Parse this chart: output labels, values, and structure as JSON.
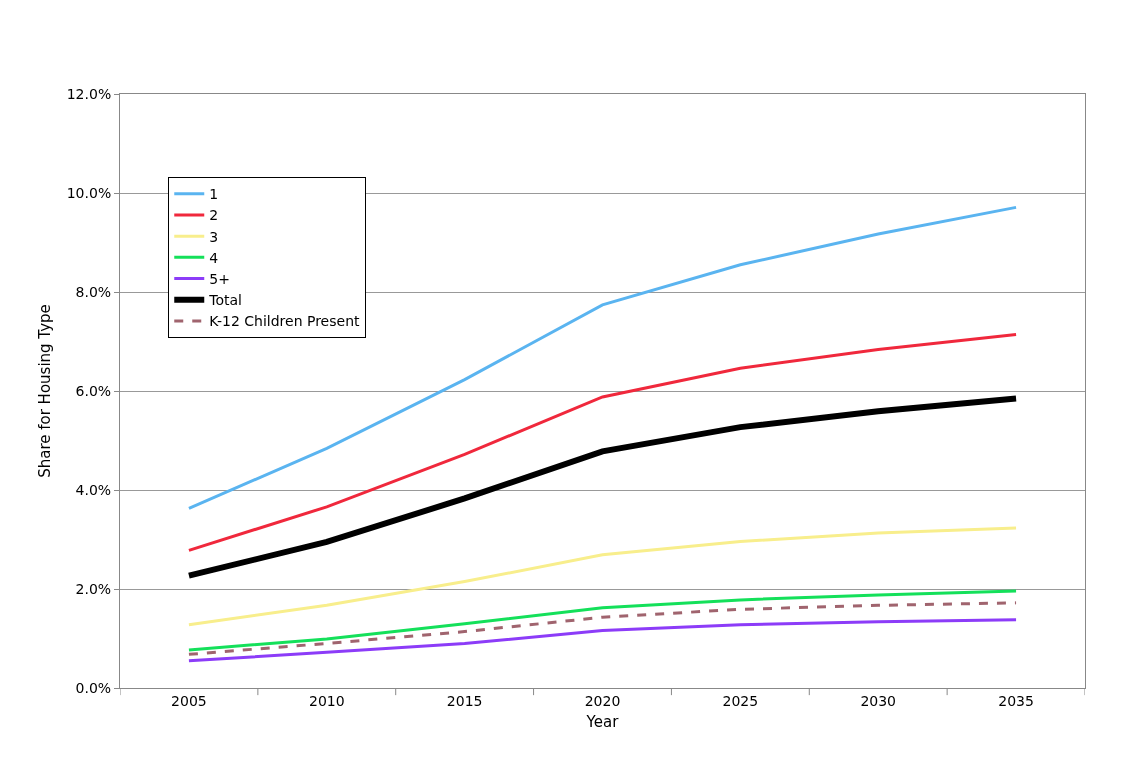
{
  "chart_data": {
    "type": "line",
    "xlabel": "Year",
    "ylabel": "Share for Housing Type",
    "categories": [
      "2005",
      "2010",
      "2015",
      "2020",
      "2025",
      "2030",
      "2035"
    ],
    "series": [
      {
        "name": "1",
        "color": "#5ab4f0",
        "values": [
          3.63,
          4.84,
          6.23,
          7.74,
          8.55,
          9.17,
          9.71
        ]
      },
      {
        "name": "2",
        "color": "#f0283c",
        "values": [
          2.78,
          3.66,
          4.72,
          5.88,
          6.46,
          6.84,
          7.14
        ]
      },
      {
        "name": "3",
        "color": "#f8ee8c",
        "values": [
          1.28,
          1.67,
          2.15,
          2.69,
          2.96,
          3.13,
          3.23
        ]
      },
      {
        "name": "4",
        "color": "#14e05a",
        "values": [
          0.77,
          0.99,
          1.3,
          1.62,
          1.78,
          1.88,
          1.96
        ]
      },
      {
        "name": "5+",
        "color": "#8c3cf8",
        "values": [
          0.55,
          0.72,
          0.9,
          1.16,
          1.28,
          1.34,
          1.38
        ]
      },
      {
        "name": "Total",
        "color": "#000000",
        "values": [
          2.27,
          2.95,
          3.83,
          4.78,
          5.27,
          5.59,
          5.85
        ]
      },
      {
        "name": "K-12 Children Present",
        "color": "#a0646e",
        "line_style": "dashed",
        "values": [
          0.68,
          0.9,
          1.14,
          1.43,
          1.59,
          1.67,
          1.72
        ]
      }
    ],
    "ylim": [
      0,
      12
    ],
    "yticks": [
      {
        "value": 0,
        "label": "0.0%"
      },
      {
        "value": 2,
        "label": "2.0%"
      },
      {
        "value": 4,
        "label": "4.0%"
      },
      {
        "value": 6,
        "label": "6.0%"
      },
      {
        "value": 8,
        "label": "8.0%"
      },
      {
        "value": 10,
        "label": "10.0%"
      },
      {
        "value": 12,
        "label": "12.0%"
      }
    ],
    "grid": "y",
    "legend": "top left",
    "marker": "none",
    "line_style": "solid"
  }
}
